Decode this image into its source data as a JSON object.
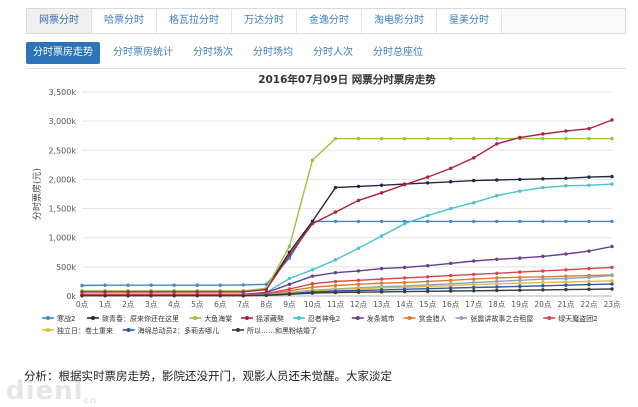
{
  "top_tabs": [
    "网票分时",
    "哈票分时",
    "格瓦拉分时",
    "万达分时",
    "金逸分时",
    "淘电影分时",
    "星美分时"
  ],
  "sub_tabs": [
    "分时票房走势",
    "分时票房统计",
    "分时场次",
    "分时场均",
    "分时人次",
    "分时总座位"
  ],
  "analysis_text": "分析：根据实时票房走势，影院还没开门，观影人员还未觉醒。大家淡定",
  "watermark": {
    "main": "dienl",
    "sub": "cn"
  },
  "chart_data": {
    "type": "line",
    "title": "2016年07月09日  网票分时票房走势",
    "ylabel": "分时票房(元)",
    "xlabel": "",
    "x": [
      "0点",
      "1点",
      "2点",
      "3点",
      "4点",
      "5点",
      "6点",
      "7点",
      "8点",
      "9点",
      "10点",
      "11点",
      "12点",
      "13点",
      "14点",
      "15点",
      "16点",
      "17点",
      "18点",
      "19点",
      "20点",
      "21点",
      "22点",
      "23点"
    ],
    "yticks": [
      "0k",
      "500k",
      "1,000k",
      "1,500k",
      "2,000k",
      "2,500k",
      "3,000k",
      "3,500k"
    ],
    "ylim": [
      0,
      3500
    ],
    "grid": true,
    "legend_position": "bottom",
    "series": [
      {
        "name": "寒战2",
        "color": "#4a86c5",
        "values": [
          180,
          185,
          185,
          185,
          185,
          185,
          185,
          190,
          200,
          650,
          1280,
          1280,
          1280,
          1280,
          1280,
          1280,
          1280,
          1280,
          1280,
          1280,
          1280,
          1280,
          1280,
          1280
        ]
      },
      {
        "name": "致青春：原来你还在这里",
        "color": "#1f2a44",
        "values": [
          80,
          80,
          80,
          80,
          80,
          80,
          80,
          80,
          120,
          750,
          1280,
          1860,
          1880,
          1900,
          1920,
          1940,
          1960,
          1980,
          1990,
          2000,
          2010,
          2020,
          2040,
          2050
        ]
      },
      {
        "name": "大鱼海棠",
        "color": "#9cc33b",
        "values": [
          90,
          90,
          90,
          90,
          90,
          90,
          90,
          90,
          130,
          850,
          2330,
          2700,
          2700,
          2700,
          2700,
          2700,
          2700,
          2700,
          2700,
          2700,
          2700,
          2700,
          2700,
          2700
        ]
      },
      {
        "name": "摇滚藏獒",
        "color": "#b0223a",
        "values": [
          70,
          70,
          70,
          70,
          70,
          70,
          70,
          70,
          110,
          700,
          1240,
          1440,
          1640,
          1770,
          1910,
          2040,
          2190,
          2370,
          2610,
          2720,
          2780,
          2830,
          2870,
          3020
        ]
      },
      {
        "name": "忍者神龟2",
        "color": "#46c3d3",
        "values": [
          20,
          20,
          20,
          20,
          20,
          20,
          20,
          20,
          60,
          300,
          450,
          620,
          820,
          1030,
          1240,
          1380,
          1500,
          1600,
          1720,
          1800,
          1860,
          1890,
          1900,
          1920
        ]
      },
      {
        "name": "发条城市",
        "color": "#6a3d8c",
        "values": [
          30,
          30,
          30,
          30,
          30,
          30,
          30,
          30,
          60,
          200,
          340,
          400,
          430,
          470,
          490,
          520,
          560,
          600,
          630,
          650,
          680,
          720,
          770,
          850
        ]
      },
      {
        "name": "赏金猎人",
        "color": "#e07a2a",
        "values": [
          15,
          15,
          15,
          15,
          15,
          15,
          15,
          15,
          30,
          90,
          150,
          180,
          200,
          220,
          230,
          250,
          270,
          290,
          310,
          320,
          330,
          340,
          350,
          360
        ]
      },
      {
        "name": "张震讲故事之合租屋",
        "color": "#8aa0c8",
        "values": [
          10,
          10,
          10,
          10,
          10,
          10,
          10,
          10,
          20,
          60,
          100,
          120,
          140,
          160,
          170,
          190,
          210,
          230,
          250,
          270,
          290,
          300,
          320,
          350
        ]
      },
      {
        "name": "绿天魔盗团2",
        "color": "#d9434b",
        "values": [
          25,
          25,
          25,
          25,
          25,
          25,
          25,
          25,
          40,
          120,
          210,
          250,
          270,
          290,
          310,
          330,
          350,
          370,
          390,
          410,
          430,
          450,
          470,
          490
        ]
      },
      {
        "name": "独立日：卷土重来",
        "color": "#e8b93a",
        "values": [
          10,
          10,
          10,
          10,
          10,
          10,
          10,
          10,
          20,
          50,
          90,
          110,
          125,
          140,
          150,
          165,
          180,
          195,
          210,
          220,
          230,
          240,
          250,
          260
        ]
      },
      {
        "name": "海绵总动员2：多莉去哪儿",
        "color": "#2a5b9a",
        "values": [
          8,
          8,
          8,
          8,
          8,
          8,
          8,
          8,
          15,
          40,
          70,
          85,
          95,
          105,
          115,
          125,
          135,
          145,
          155,
          165,
          175,
          185,
          195,
          205
        ]
      },
      {
        "name": "所以……和黑粉结婚了",
        "color": "#3a3a3a",
        "values": [
          5,
          5,
          5,
          5,
          5,
          5,
          5,
          5,
          10,
          30,
          50,
          60,
          65,
          70,
          75,
          80,
          85,
          90,
          95,
          100,
          105,
          110,
          115,
          120
        ]
      }
    ]
  }
}
